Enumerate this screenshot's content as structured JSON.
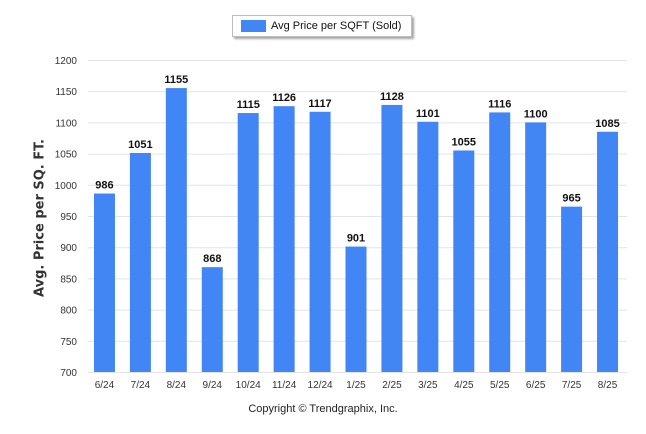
{
  "chart_data": {
    "type": "bar",
    "categories": [
      "6/24",
      "7/24",
      "8/24",
      "9/24",
      "10/24",
      "11/24",
      "12/24",
      "1/25",
      "2/25",
      "3/25",
      "4/25",
      "5/25",
      "6/25",
      "7/25",
      "8/25"
    ],
    "series": [
      {
        "name": "Avg Price per SQFT (Sold)",
        "values": [
          986,
          1051,
          1155,
          868,
          1115,
          1126,
          1117,
          901,
          1128,
          1101,
          1055,
          1116,
          1100,
          965,
          1085
        ]
      }
    ],
    "ylabel": "Avg. Price per SQ. FT.",
    "xlabel": "",
    "ylim": [
      700,
      1200
    ],
    "yticks": [
      700,
      750,
      800,
      850,
      900,
      950,
      1000,
      1050,
      1100,
      1150,
      1200
    ],
    "grid": true,
    "legend_position": "top-center",
    "data_labels": true,
    "bar_color": "#4285f4"
  },
  "footer": {
    "copyright": "Copyright © Trendgraphix, Inc."
  }
}
